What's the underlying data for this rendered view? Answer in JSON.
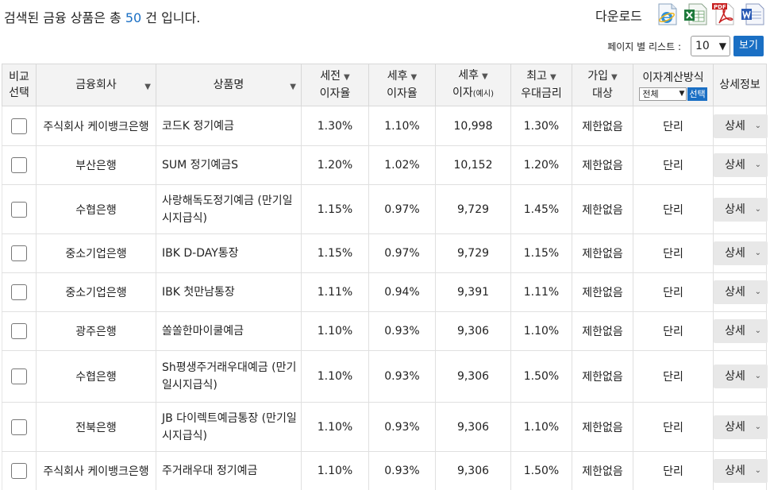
{
  "header": {
    "result_prefix": "검색된 금융 상품은 총 ",
    "result_count": "50",
    "result_suffix": " 건 입니다.",
    "download_label": "다운로드",
    "download_icons": [
      "ie-icon",
      "excel-icon",
      "pdf-icon",
      "word-icon"
    ],
    "pdf_text": "PDF"
  },
  "paging": {
    "label": "페이지 별 리스트 :",
    "page_size": "10",
    "view_button": "보기"
  },
  "columns": {
    "compare": [
      "비교",
      "선택"
    ],
    "bank": "금융회사",
    "product": "상품명",
    "pretax": [
      "세전",
      "이자율"
    ],
    "posttax": [
      "세후",
      "이자율"
    ],
    "interest": [
      "세후",
      "이자",
      "(예시)"
    ],
    "max_rate": [
      "최고",
      "우대금리"
    ],
    "join": [
      "가입",
      "대상"
    ],
    "calc_method": "이자계산방식",
    "calc_select": "전체",
    "calc_button": "선택",
    "detail": "상세정보"
  },
  "rows": [
    {
      "bank": "주식회사 케이뱅크은행",
      "product": "코드K 정기예금",
      "pretax": "1.30%",
      "posttax": "1.10%",
      "interest": "10,998",
      "max": "1.30%",
      "join": "제한없음",
      "calc": "단리",
      "detail": "상세"
    },
    {
      "bank": "부산은행",
      "product": "SUM 정기예금S",
      "pretax": "1.20%",
      "posttax": "1.02%",
      "interest": "10,152",
      "max": "1.20%",
      "join": "제한없음",
      "calc": "단리",
      "detail": "상세"
    },
    {
      "bank": "수협은행",
      "product": "사랑해독도정기예금 (만기일시지급식)",
      "pretax": "1.15%",
      "posttax": "0.97%",
      "interest": "9,729",
      "max": "1.45%",
      "join": "제한없음",
      "calc": "단리",
      "detail": "상세"
    },
    {
      "bank": "중소기업은행",
      "product": "IBK D-DAY통장",
      "pretax": "1.15%",
      "posttax": "0.97%",
      "interest": "9,729",
      "max": "1.15%",
      "join": "제한없음",
      "calc": "단리",
      "detail": "상세"
    },
    {
      "bank": "중소기업은행",
      "product": "IBK 첫만남통장",
      "pretax": "1.11%",
      "posttax": "0.94%",
      "interest": "9,391",
      "max": "1.11%",
      "join": "제한없음",
      "calc": "단리",
      "detail": "상세"
    },
    {
      "bank": "광주은행",
      "product": "쏠쏠한마이쿨예금",
      "pretax": "1.10%",
      "posttax": "0.93%",
      "interest": "9,306",
      "max": "1.10%",
      "join": "제한없음",
      "calc": "단리",
      "detail": "상세"
    },
    {
      "bank": "수협은행",
      "product": "Sh평생주거래우대예금 (만기일시지급식)",
      "pretax": "1.10%",
      "posttax": "0.93%",
      "interest": "9,306",
      "max": "1.50%",
      "join": "제한없음",
      "calc": "단리",
      "detail": "상세"
    },
    {
      "bank": "전북은행",
      "product": "JB 다이렉트예금통장 (만기일시지급식)",
      "pretax": "1.10%",
      "posttax": "0.93%",
      "interest": "9,306",
      "max": "1.10%",
      "join": "제한없음",
      "calc": "단리",
      "detail": "상세"
    },
    {
      "bank": "주식회사 케이뱅크은행",
      "product": "주거래우대 정기예금",
      "pretax": "1.10%",
      "posttax": "0.93%",
      "interest": "9,306",
      "max": "1.50%",
      "join": "제한없음",
      "calc": "단리",
      "detail": "상세"
    }
  ]
}
